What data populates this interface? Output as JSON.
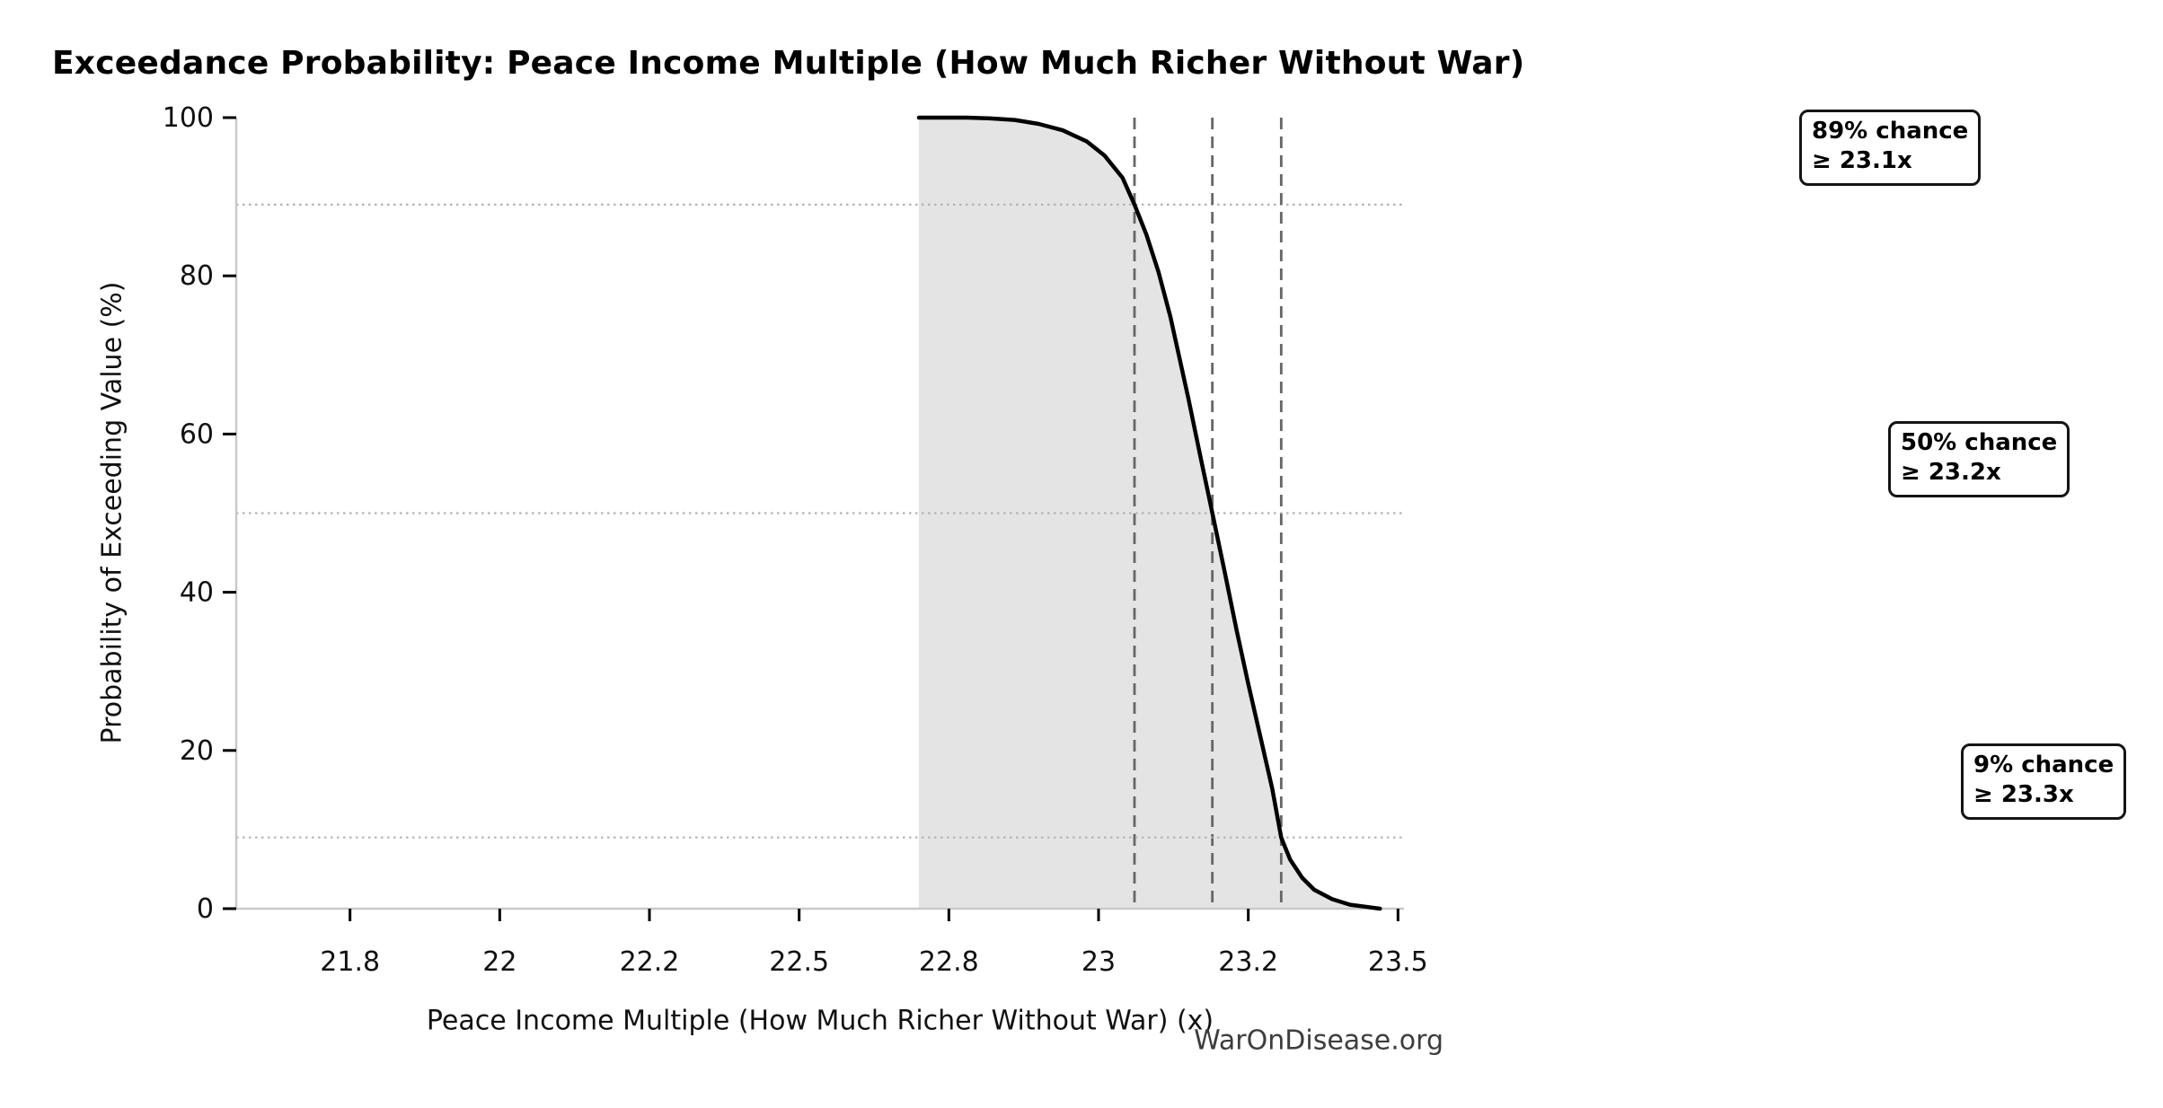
{
  "title": "Exceedance Probability: Peace Income Multiple (How Much Richer Without War)",
  "watermark": "WarOnDisease.org",
  "annotations": [
    {
      "line1": "89% chance",
      "line2": "≥ 23.1x"
    },
    {
      "line1": "50% chance",
      "line2": "≥ 23.2x"
    },
    {
      "line1": "9% chance",
      "line2": "≥ 23.3x"
    }
  ],
  "chart_data": {
    "type": "area",
    "title": "Exceedance Probability: Peace Income Multiple (How Much Richer Without War)",
    "xlabel": "Peace Income Multiple (How Much Richer Without War) (x)",
    "ylabel": "Probability of Exceeding Value (%)",
    "xlim": [
      21.56,
      23.51
    ],
    "ylim": [
      0,
      100
    ],
    "grid": "dotted horizontal lines at quantile probabilities; dashed vertical lines at quantile values",
    "legend": "none",
    "x_ticks": [
      {
        "value": 21.75,
        "label": "21.8"
      },
      {
        "value": 22.0,
        "label": "22"
      },
      {
        "value": 22.25,
        "label": "22.2"
      },
      {
        "value": 22.5,
        "label": "22.5"
      },
      {
        "value": 22.75,
        "label": "22.8"
      },
      {
        "value": 23.0,
        "label": "23"
      },
      {
        "value": 23.25,
        "label": "23.2"
      },
      {
        "value": 23.5,
        "label": "23.5"
      }
    ],
    "y_ticks": [
      {
        "value": 0,
        "label": "0"
      },
      {
        "value": 20,
        "label": "20"
      },
      {
        "value": 40,
        "label": "40"
      },
      {
        "value": 60,
        "label": "60"
      },
      {
        "value": 80,
        "label": "80"
      },
      {
        "value": 100,
        "label": "100"
      }
    ],
    "curve": [
      [
        22.7,
        100
      ],
      [
        22.78,
        100
      ],
      [
        22.82,
        99.9
      ],
      [
        22.86,
        99.7
      ],
      [
        22.9,
        99.2
      ],
      [
        22.94,
        98.4
      ],
      [
        22.98,
        97.0
      ],
      [
        23.01,
        95.2
      ],
      [
        23.04,
        92.4
      ],
      [
        23.06,
        89
      ],
      [
        23.08,
        85.2
      ],
      [
        23.1,
        80.5
      ],
      [
        23.12,
        74.8
      ],
      [
        23.15,
        64.5
      ],
      [
        23.17,
        57.2
      ],
      [
        23.19,
        50
      ],
      [
        23.21,
        42.8
      ],
      [
        23.23,
        35.4
      ],
      [
        23.25,
        28.4
      ],
      [
        23.27,
        21.8
      ],
      [
        23.29,
        15.2
      ],
      [
        23.305,
        9
      ],
      [
        23.32,
        6.2
      ],
      [
        23.34,
        3.9
      ],
      [
        23.36,
        2.4
      ],
      [
        23.39,
        1.2
      ],
      [
        23.42,
        0.5
      ],
      [
        23.45,
        0.2
      ],
      [
        23.47,
        0
      ]
    ],
    "quantile_lines": [
      {
        "prob": 89,
        "x": 23.06,
        "label": "89% chance ≥ 23.1x"
      },
      {
        "prob": 50,
        "x": 23.19,
        "label": "50% chance ≥ 23.2x"
      },
      {
        "prob": 9,
        "x": 23.305,
        "label": "9% chance ≥ 23.3x"
      }
    ],
    "colors": {
      "curve": "#000000",
      "area_fill": "#e4e4e4",
      "spine": "#c9c9c9",
      "tick_mark": "#000000",
      "dotted_gridline": "#b3b3b3",
      "dashed_quantile": "#666666",
      "watermark": "#3d3d3d"
    }
  }
}
